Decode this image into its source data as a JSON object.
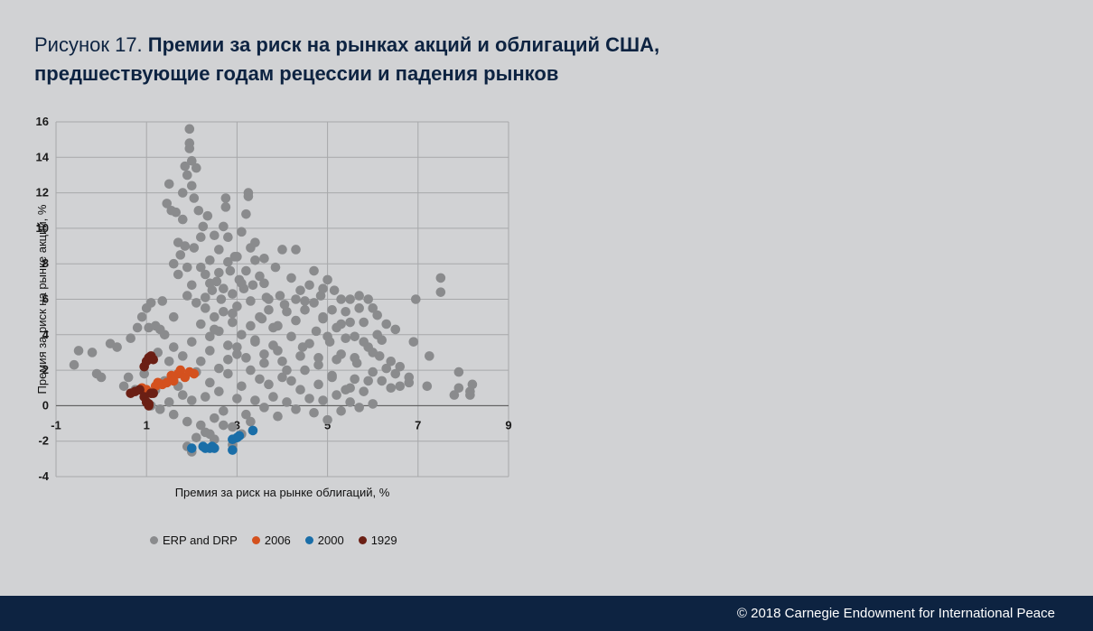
{
  "figure": {
    "label": "Рисунок 17.",
    "title": "Премии за риск на рынках акций и облигаций США, предшествующие годам рецессии и падения рынков"
  },
  "footer": {
    "copyright": "© 2018 Carnegie Endowment for International Peace"
  },
  "colors": {
    "background": "#d1d2d4",
    "navy": "#0d2341",
    "grid": "#a7a8aa"
  },
  "chart_data": {
    "type": "scatter",
    "xlabel": "Премия за риск на рынке облигаций, %",
    "ylabel": "Премия за риск на рынке акций, %",
    "xlim": [
      -1,
      9
    ],
    "ylim": [
      -4,
      16
    ],
    "xticks": [
      -1,
      1,
      3,
      5,
      7,
      9
    ],
    "yticks": [
      -4,
      -2,
      0,
      2,
      4,
      6,
      8,
      10,
      12,
      14,
      16
    ],
    "grid": true,
    "legend_position": "bottom",
    "series": [
      {
        "name": "ERP and DRP",
        "color": "#8a8b8d",
        "points": [
          [
            -0.6,
            2.3
          ],
          [
            -0.5,
            3.1
          ],
          [
            -0.2,
            3.0
          ],
          [
            -0.1,
            1.8
          ],
          [
            0.0,
            1.6
          ],
          [
            0.2,
            3.5
          ],
          [
            0.35,
            3.3
          ],
          [
            0.5,
            1.1
          ],
          [
            0.6,
            1.6
          ],
          [
            0.65,
            3.8
          ],
          [
            0.75,
            0.9
          ],
          [
            0.8,
            4.4
          ],
          [
            0.9,
            5.0
          ],
          [
            0.95,
            1.8
          ],
          [
            1.0,
            5.5
          ],
          [
            1.05,
            4.4
          ],
          [
            1.1,
            5.8
          ],
          [
            1.2,
            4.5
          ],
          [
            1.25,
            3.0
          ],
          [
            1.3,
            4.3
          ],
          [
            1.35,
            5.9
          ],
          [
            1.4,
            4.0
          ],
          [
            1.45,
            11.4
          ],
          [
            1.5,
            12.5
          ],
          [
            1.55,
            11.0
          ],
          [
            1.6,
            5.0
          ],
          [
            1.6,
            8.0
          ],
          [
            1.65,
            10.9
          ],
          [
            1.7,
            9.2
          ],
          [
            1.7,
            7.4
          ],
          [
            1.75,
            8.5
          ],
          [
            1.8,
            10.5
          ],
          [
            1.8,
            12.0
          ],
          [
            1.85,
            9.0
          ],
          [
            1.85,
            13.5
          ],
          [
            1.9,
            7.8
          ],
          [
            1.9,
            13.0
          ],
          [
            1.9,
            6.2
          ],
          [
            1.95,
            14.5
          ],
          [
            1.95,
            15.6
          ],
          [
            1.95,
            14.8
          ],
          [
            2.0,
            13.8
          ],
          [
            2.0,
            12.4
          ],
          [
            2.0,
            6.8
          ],
          [
            2.05,
            11.7
          ],
          [
            2.05,
            8.9
          ],
          [
            2.1,
            5.8
          ],
          [
            2.1,
            13.4
          ],
          [
            2.15,
            11.0
          ],
          [
            2.2,
            9.5
          ],
          [
            2.2,
            4.6
          ],
          [
            2.25,
            10.1
          ],
          [
            2.3,
            7.4
          ],
          [
            2.3,
            5.5
          ],
          [
            2.35,
            10.7
          ],
          [
            2.4,
            8.2
          ],
          [
            2.4,
            3.9
          ],
          [
            2.45,
            6.5
          ],
          [
            2.5,
            9.6
          ],
          [
            2.5,
            5.0
          ],
          [
            2.55,
            7.0
          ],
          [
            2.6,
            4.2
          ],
          [
            2.6,
            8.8
          ],
          [
            2.65,
            6.0
          ],
          [
            2.7,
            10.1
          ],
          [
            2.7,
            5.3
          ],
          [
            2.75,
            11.7
          ],
          [
            2.75,
            11.2
          ],
          [
            2.8,
            9.5
          ],
          [
            2.8,
            3.4
          ],
          [
            2.85,
            7.6
          ],
          [
            2.9,
            6.3
          ],
          [
            2.9,
            4.7
          ],
          [
            2.95,
            8.4
          ],
          [
            3.0,
            5.6
          ],
          [
            3.0,
            2.9
          ],
          [
            3.05,
            7.1
          ],
          [
            3.1,
            9.8
          ],
          [
            3.1,
            4.0
          ],
          [
            3.15,
            6.6
          ],
          [
            3.2,
            10.8
          ],
          [
            3.25,
            12.0
          ],
          [
            3.25,
            11.8
          ],
          [
            3.3,
            8.9
          ],
          [
            3.3,
            5.9
          ],
          [
            3.35,
            6.8
          ],
          [
            3.4,
            9.2
          ],
          [
            3.4,
            3.6
          ],
          [
            3.5,
            7.3
          ],
          [
            3.55,
            4.9
          ],
          [
            3.6,
            8.3
          ],
          [
            3.6,
            2.4
          ],
          [
            3.65,
            6.1
          ],
          [
            3.7,
            5.4
          ],
          [
            3.8,
            4.4
          ],
          [
            3.85,
            7.8
          ],
          [
            3.9,
            3.1
          ],
          [
            3.95,
            6.2
          ],
          [
            4.0,
            8.8
          ],
          [
            4.05,
            5.7
          ],
          [
            4.1,
            2.0
          ],
          [
            4.2,
            7.2
          ],
          [
            4.3,
            8.8
          ],
          [
            4.3,
            4.8
          ],
          [
            4.4,
            6.5
          ],
          [
            4.45,
            3.3
          ],
          [
            4.5,
            5.9
          ],
          [
            4.6,
            6.8
          ],
          [
            4.7,
            7.6
          ],
          [
            4.75,
            4.2
          ],
          [
            4.8,
            2.3
          ],
          [
            4.85,
            6.2
          ],
          [
            4.9,
            5.0
          ],
          [
            5.0,
            7.1
          ],
          [
            5.05,
            3.6
          ],
          [
            5.1,
            1.6
          ],
          [
            5.15,
            6.5
          ],
          [
            5.2,
            4.4
          ],
          [
            5.3,
            2.9
          ],
          [
            5.4,
            5.3
          ],
          [
            5.5,
            6.0
          ],
          [
            5.5,
            1.0
          ],
          [
            5.6,
            3.9
          ],
          [
            5.65,
            2.4
          ],
          [
            5.7,
            6.2
          ],
          [
            5.8,
            4.7
          ],
          [
            5.9,
            3.3
          ],
          [
            6.0,
            1.9
          ],
          [
            6.0,
            5.5
          ],
          [
            6.1,
            4.0
          ],
          [
            6.15,
            2.8
          ],
          [
            6.2,
            1.4
          ],
          [
            6.3,
            2.1
          ],
          [
            6.4,
            1.0
          ],
          [
            6.5,
            1.8
          ],
          [
            6.6,
            1.1
          ],
          [
            6.8,
            1.3
          ],
          [
            6.9,
            3.6
          ],
          [
            6.95,
            6.0
          ],
          [
            7.2,
            1.1
          ],
          [
            7.25,
            2.8
          ],
          [
            7.5,
            7.2
          ],
          [
            7.5,
            6.4
          ],
          [
            7.8,
            0.6
          ],
          [
            7.9,
            1.0
          ],
          [
            7.9,
            1.9
          ],
          [
            8.15,
            0.8
          ],
          [
            8.2,
            1.2
          ],
          [
            8.15,
            0.6
          ],
          [
            1.1,
            0.0
          ],
          [
            1.2,
            0.9
          ],
          [
            1.3,
            -0.2
          ],
          [
            1.4,
            1.4
          ],
          [
            1.5,
            0.2
          ],
          [
            1.6,
            -0.5
          ],
          [
            1.7,
            1.1
          ],
          [
            1.8,
            0.6
          ],
          [
            1.9,
            -0.9
          ],
          [
            2.0,
            0.3
          ],
          [
            2.1,
            1.9
          ],
          [
            2.2,
            -1.1
          ],
          [
            2.3,
            0.5
          ],
          [
            2.4,
            1.3
          ],
          [
            2.5,
            -0.7
          ],
          [
            2.6,
            0.8
          ],
          [
            2.7,
            -0.3
          ],
          [
            2.8,
            1.8
          ],
          [
            2.9,
            -1.2
          ],
          [
            3.0,
            0.4
          ],
          [
            3.1,
            1.1
          ],
          [
            3.2,
            -0.5
          ],
          [
            3.3,
            2.0
          ],
          [
            3.4,
            0.3
          ],
          [
            3.5,
            1.5
          ],
          [
            3.6,
            -0.1
          ],
          [
            3.7,
            1.2
          ],
          [
            3.8,
            0.5
          ],
          [
            3.9,
            -0.6
          ],
          [
            4.0,
            1.6
          ],
          [
            4.1,
            0.2
          ],
          [
            4.2,
            1.4
          ],
          [
            4.3,
            -0.2
          ],
          [
            4.4,
            0.9
          ],
          [
            4.5,
            2.0
          ],
          [
            4.6,
            0.4
          ],
          [
            4.7,
            -0.4
          ],
          [
            4.8,
            1.2
          ],
          [
            4.9,
            0.3
          ],
          [
            5.0,
            -0.8
          ],
          [
            5.1,
            1.7
          ],
          [
            5.2,
            0.6
          ],
          [
            5.3,
            -0.3
          ],
          [
            5.4,
            0.9
          ],
          [
            5.5,
            0.2
          ],
          [
            5.6,
            1.5
          ],
          [
            5.7,
            -0.1
          ],
          [
            5.8,
            0.8
          ],
          [
            5.9,
            1.4
          ],
          [
            6.0,
            0.1
          ],
          [
            1.9,
            -2.3
          ],
          [
            2.0,
            -2.6
          ],
          [
            2.1,
            -1.8
          ],
          [
            2.3,
            -1.5
          ],
          [
            2.5,
            -1.9
          ],
          [
            2.7,
            -1.1
          ],
          [
            2.9,
            -2.2
          ],
          [
            3.1,
            -1.6
          ],
          [
            3.3,
            -0.9
          ],
          [
            2.4,
            -1.6
          ],
          [
            1.5,
            2.5
          ],
          [
            1.6,
            3.3
          ],
          [
            1.8,
            2.8
          ],
          [
            2.0,
            3.6
          ],
          [
            2.2,
            2.5
          ],
          [
            2.4,
            3.1
          ],
          [
            2.6,
            2.1
          ],
          [
            2.8,
            2.6
          ],
          [
            3.0,
            3.3
          ],
          [
            3.2,
            2.7
          ],
          [
            3.4,
            3.7
          ],
          [
            3.6,
            2.9
          ],
          [
            3.8,
            3.4
          ],
          [
            4.0,
            2.5
          ],
          [
            4.2,
            3.9
          ],
          [
            4.4,
            2.8
          ],
          [
            4.6,
            3.5
          ],
          [
            4.8,
            2.7
          ],
          [
            5.0,
            3.9
          ],
          [
            5.2,
            2.6
          ],
          [
            5.4,
            3.8
          ],
          [
            5.6,
            2.7
          ],
          [
            5.8,
            3.6
          ],
          [
            6.0,
            3.0
          ],
          [
            6.2,
            3.7
          ],
          [
            6.4,
            2.5
          ],
          [
            6.6,
            2.2
          ],
          [
            6.8,
            1.6
          ],
          [
            4.9,
            4.9
          ],
          [
            5.3,
            4.6
          ],
          [
            2.3,
            6.1
          ],
          [
            2.5,
            4.3
          ],
          [
            2.7,
            6.6
          ],
          [
            2.9,
            5.2
          ],
          [
            3.1,
            6.9
          ],
          [
            3.3,
            4.5
          ],
          [
            3.5,
            5.0
          ],
          [
            3.7,
            6.0
          ],
          [
            3.9,
            4.5
          ],
          [
            4.1,
            5.3
          ],
          [
            4.3,
            6.0
          ],
          [
            4.5,
            5.4
          ],
          [
            4.7,
            5.8
          ],
          [
            4.9,
            6.6
          ],
          [
            5.1,
            5.4
          ],
          [
            5.3,
            6.0
          ],
          [
            5.5,
            4.7
          ],
          [
            5.7,
            5.5
          ],
          [
            5.9,
            6.0
          ],
          [
            6.1,
            5.1
          ],
          [
            6.3,
            4.6
          ],
          [
            6.5,
            4.3
          ],
          [
            2.2,
            7.8
          ],
          [
            2.4,
            6.9
          ],
          [
            2.6,
            7.5
          ],
          [
            2.8,
            8.1
          ],
          [
            3.0,
            8.4
          ],
          [
            3.2,
            7.6
          ],
          [
            3.4,
            8.2
          ],
          [
            3.6,
            6.9
          ]
        ]
      },
      {
        "name": "2006",
        "color": "#d4511e",
        "points": [
          [
            0.9,
            1.0
          ],
          [
            1.0,
            0.9
          ],
          [
            1.1,
            0.7
          ],
          [
            1.2,
            1.1
          ],
          [
            1.25,
            1.3
          ],
          [
            1.35,
            1.2
          ],
          [
            1.45,
            1.3
          ],
          [
            1.55,
            1.7
          ],
          [
            1.6,
            1.4
          ],
          [
            1.7,
            1.8
          ],
          [
            1.75,
            2.0
          ],
          [
            1.85,
            1.6
          ],
          [
            1.95,
            1.9
          ],
          [
            2.05,
            1.8
          ]
        ]
      },
      {
        "name": "2000",
        "color": "#1a6ea8",
        "points": [
          [
            2.0,
            -2.4
          ],
          [
            2.25,
            -2.3
          ],
          [
            2.3,
            -2.4
          ],
          [
            2.4,
            -2.4
          ],
          [
            2.45,
            -2.3
          ],
          [
            2.5,
            -2.4
          ],
          [
            2.9,
            -2.5
          ],
          [
            2.9,
            -1.9
          ],
          [
            3.0,
            -1.8
          ],
          [
            3.05,
            -1.7
          ],
          [
            3.35,
            -1.4
          ]
        ]
      },
      {
        "name": "1929",
        "color": "#6b1f14",
        "points": [
          [
            0.65,
            0.7
          ],
          [
            0.75,
            0.8
          ],
          [
            0.85,
            0.9
          ],
          [
            0.95,
            0.5
          ],
          [
            1.0,
            0.2
          ],
          [
            1.05,
            0.1
          ],
          [
            1.05,
            0.0
          ],
          [
            1.1,
            0.7
          ],
          [
            0.95,
            2.2
          ],
          [
            1.0,
            2.5
          ],
          [
            1.05,
            2.7
          ],
          [
            1.1,
            2.8
          ],
          [
            1.15,
            2.6
          ],
          [
            1.15,
            0.7
          ]
        ]
      }
    ]
  }
}
